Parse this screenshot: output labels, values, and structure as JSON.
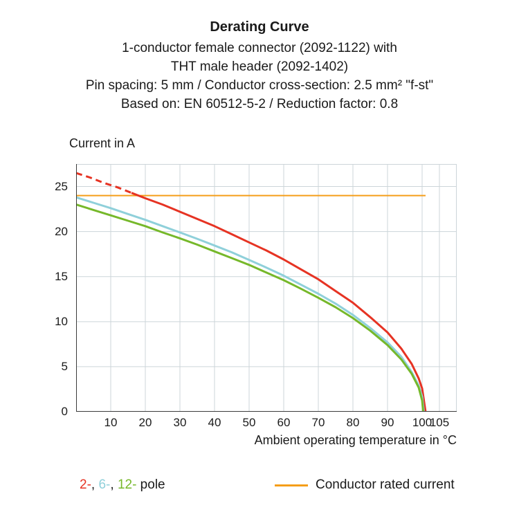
{
  "chart_data": {
    "type": "line",
    "title": "Derating Curve",
    "subtitle_lines": [
      "1-conductor female connector (2092-1122) with",
      "THT male header (2092-1402)",
      "Pin spacing: 5 mm / Conductor cross-section: 2.5 mm² \"f-st\"",
      "Based on: EN 60512-5-2 / Reduction factor: 0.8"
    ],
    "ylabel": "Current in A",
    "xlabel": "Ambient operating temperature in °C",
    "xlim": [
      0,
      110
    ],
    "ylim": [
      0,
      27.5
    ],
    "xticks": [
      10,
      20,
      30,
      40,
      50,
      60,
      70,
      80,
      90,
      100,
      105
    ],
    "yticks": [
      0,
      5,
      10,
      15,
      20,
      25
    ],
    "grid": true,
    "series": [
      {
        "name": "2-pole",
        "color": "#e63323",
        "dashed_points": [
          [
            0,
            26.5
          ],
          [
            4,
            26.0
          ],
          [
            8,
            25.4
          ],
          [
            12,
            24.9
          ],
          [
            16,
            24.3
          ]
        ],
        "points": [
          [
            16,
            24.3
          ],
          [
            20,
            23.7
          ],
          [
            25,
            23.0
          ],
          [
            30,
            22.2
          ],
          [
            35,
            21.4
          ],
          [
            40,
            20.6
          ],
          [
            45,
            19.7
          ],
          [
            50,
            18.8
          ],
          [
            55,
            17.9
          ],
          [
            60,
            16.9
          ],
          [
            65,
            15.8
          ],
          [
            70,
            14.7
          ],
          [
            75,
            13.4
          ],
          [
            80,
            12.1
          ],
          [
            85,
            10.5
          ],
          [
            90,
            8.8
          ],
          [
            94,
            7.0
          ],
          [
            97,
            5.3
          ],
          [
            99,
            3.7
          ],
          [
            100,
            2.6
          ],
          [
            101,
            0
          ]
        ]
      },
      {
        "name": "6-pole",
        "color": "#8fd0da",
        "points": [
          [
            0,
            23.8
          ],
          [
            5,
            23.2
          ],
          [
            10,
            22.6
          ],
          [
            15,
            21.95
          ],
          [
            20,
            21.3
          ],
          [
            25,
            20.6
          ],
          [
            30,
            19.9
          ],
          [
            35,
            19.2
          ],
          [
            40,
            18.45
          ],
          [
            45,
            17.7
          ],
          [
            50,
            16.85
          ],
          [
            55,
            16.0
          ],
          [
            60,
            15.1
          ],
          [
            65,
            14.1
          ],
          [
            70,
            13.1
          ],
          [
            75,
            12.0
          ],
          [
            80,
            10.75
          ],
          [
            85,
            9.3
          ],
          [
            90,
            7.7
          ],
          [
            94,
            6.1
          ],
          [
            97,
            4.4
          ],
          [
            99,
            2.9
          ],
          [
            100,
            1.7
          ],
          [
            100.5,
            0
          ]
        ]
      },
      {
        "name": "12-pole",
        "color": "#76b82a",
        "points": [
          [
            0,
            23.0
          ],
          [
            5,
            22.4
          ],
          [
            10,
            21.8
          ],
          [
            15,
            21.2
          ],
          [
            20,
            20.6
          ],
          [
            25,
            19.9
          ],
          [
            30,
            19.25
          ],
          [
            35,
            18.55
          ],
          [
            40,
            17.8
          ],
          [
            45,
            17.05
          ],
          [
            50,
            16.3
          ],
          [
            55,
            15.45
          ],
          [
            60,
            14.6
          ],
          [
            65,
            13.65
          ],
          [
            70,
            12.65
          ],
          [
            75,
            11.6
          ],
          [
            80,
            10.4
          ],
          [
            85,
            9.0
          ],
          [
            90,
            7.4
          ],
          [
            94,
            5.8
          ],
          [
            97,
            4.2
          ],
          [
            99,
            2.7
          ],
          [
            100,
            1.25
          ],
          [
            100.3,
            0
          ]
        ]
      }
    ],
    "reference_line": {
      "label": "Conductor rated current",
      "y": 24,
      "x_end": 101,
      "color": "#f59e19"
    }
  },
  "legend": {
    "pole_parts": [
      {
        "text": "2-",
        "color": "#e63323"
      },
      {
        "text": ", ",
        "color": "#1a1a1a"
      },
      {
        "text": "6-",
        "color": "#8fd0da"
      },
      {
        "text": ", ",
        "color": "#1a1a1a"
      },
      {
        "text": "12-",
        "color": "#76b82a"
      },
      {
        "text": " pole",
        "color": "#1a1a1a"
      }
    ]
  },
  "colors": {
    "grid": "#ccd5d9",
    "axis": "#3a3a3a",
    "text": "#1a1a1a",
    "background": "#ffffff"
  }
}
